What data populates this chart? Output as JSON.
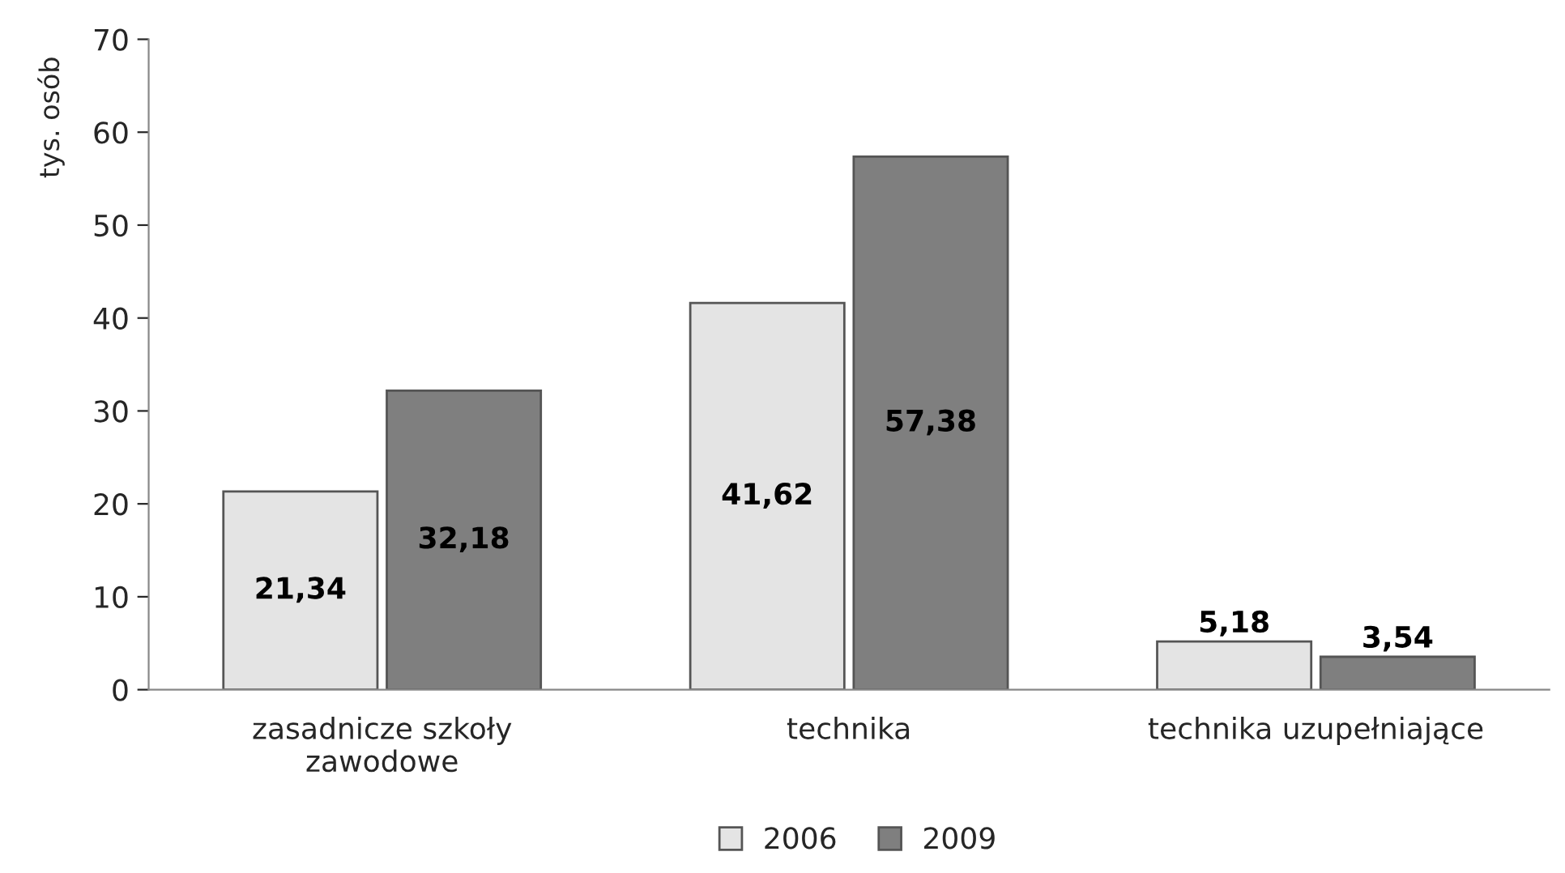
{
  "chart_data": {
    "type": "bar",
    "ylabel": "tys. osób",
    "categories": [
      "zasadnicze szkoły\nzawodowe",
      "technika",
      "technika uzupełniające"
    ],
    "series": [
      {
        "name": "2006",
        "color": "#e4e4e4",
        "values": [
          21.34,
          41.62,
          5.18
        ],
        "value_labels": [
          "21,34",
          "41,62",
          "5,18"
        ]
      },
      {
        "name": "2009",
        "color": "#7f7f7f",
        "values": [
          32.18,
          57.38,
          3.54
        ],
        "value_labels": [
          "32,18",
          "57,38",
          "3,54"
        ]
      }
    ],
    "ylim": [
      0,
      70
    ],
    "yticks": [
      0,
      10,
      20,
      30,
      40,
      50,
      60,
      70
    ],
    "grid": false,
    "legend": "bottom"
  }
}
